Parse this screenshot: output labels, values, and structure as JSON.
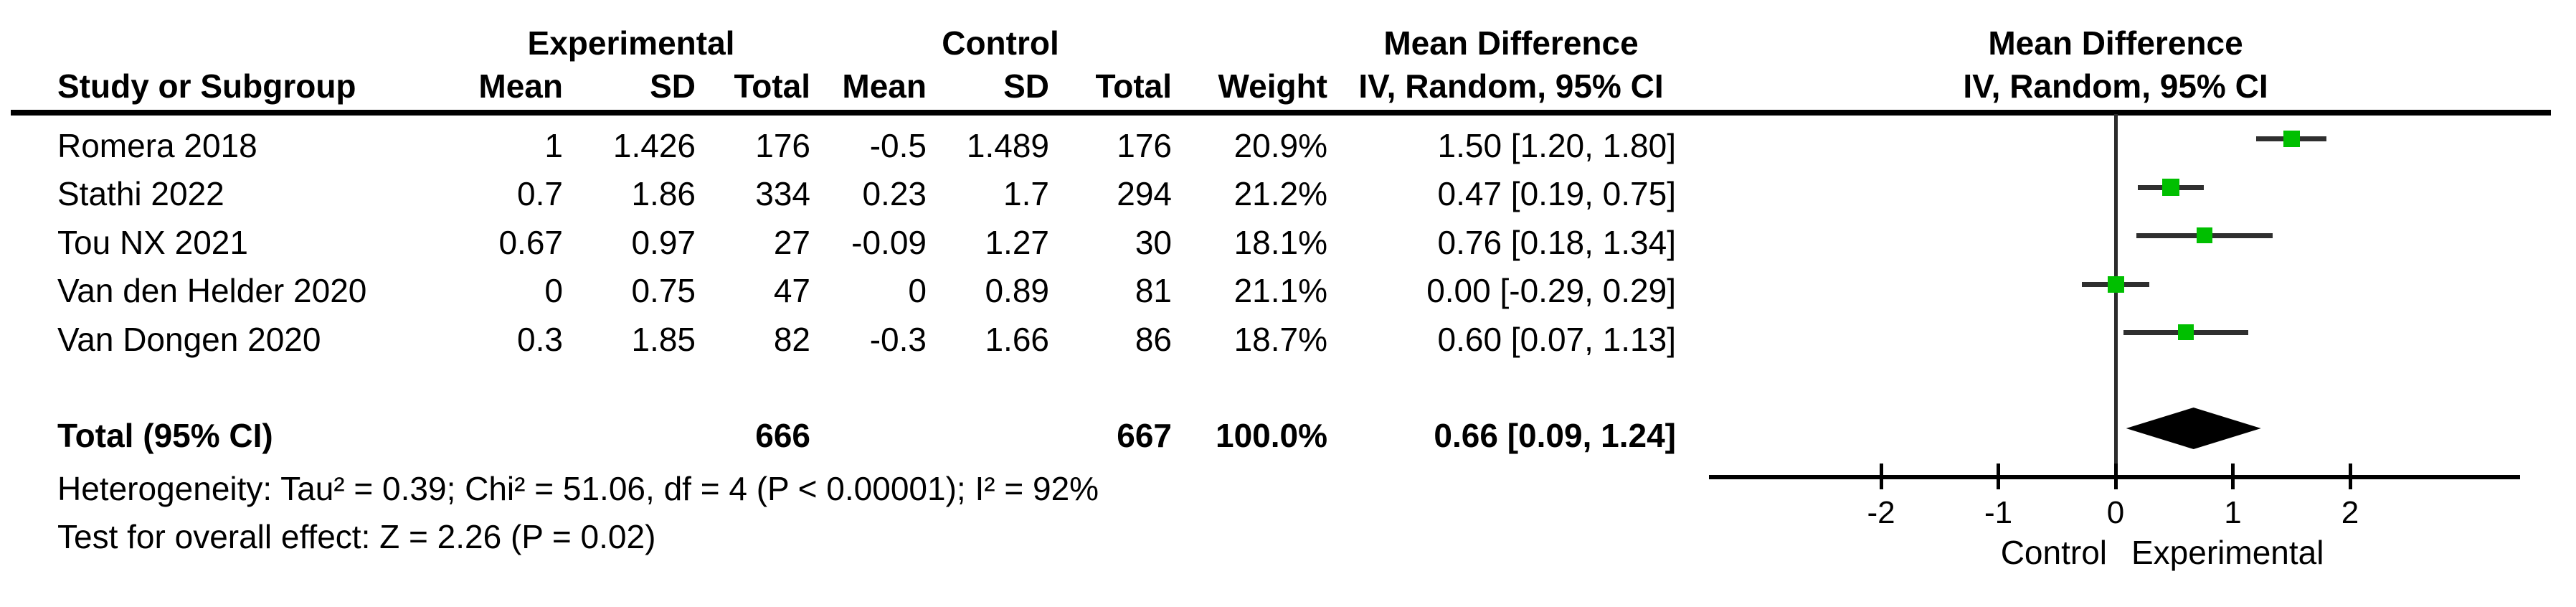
{
  "table": {
    "group_headers": {
      "experimental": "Experimental",
      "control": "Control",
      "mean_difference": "Mean Difference"
    },
    "columns": {
      "study": "Study or Subgroup",
      "mean": "Mean",
      "sd": "SD",
      "total": "Total",
      "weight": "Weight",
      "ci": "IV, Random, 95% CI"
    },
    "rows": [
      {
        "study": "Romera 2018",
        "exp_mean": "1",
        "exp_sd": "1.426",
        "exp_total": "176",
        "ctrl_mean": "-0.5",
        "ctrl_sd": "1.489",
        "ctrl_total": "176",
        "weight": "20.9%",
        "ci": "1.50 [1.20, 1.80]"
      },
      {
        "study": "Stathi 2022",
        "exp_mean": "0.7",
        "exp_sd": "1.86",
        "exp_total": "334",
        "ctrl_mean": "0.23",
        "ctrl_sd": "1.7",
        "ctrl_total": "294",
        "weight": "21.2%",
        "ci": "0.47 [0.19, 0.75]"
      },
      {
        "study": "Tou NX 2021",
        "exp_mean": "0.67",
        "exp_sd": "0.97",
        "exp_total": "27",
        "ctrl_mean": "-0.09",
        "ctrl_sd": "1.27",
        "ctrl_total": "30",
        "weight": "18.1%",
        "ci": "0.76 [0.18, 1.34]"
      },
      {
        "study": "Van den Helder 2020",
        "exp_mean": "0",
        "exp_sd": "0.75",
        "exp_total": "47",
        "ctrl_mean": "0",
        "ctrl_sd": "0.89",
        "ctrl_total": "81",
        "weight": "21.1%",
        "ci": "0.00 [-0.29, 0.29]"
      },
      {
        "study": "Van Dongen 2020",
        "exp_mean": "0.3",
        "exp_sd": "1.85",
        "exp_total": "82",
        "ctrl_mean": "-0.3",
        "ctrl_sd": "1.66",
        "ctrl_total": "86",
        "weight": "18.7%",
        "ci": "0.60 [0.07, 1.13]"
      }
    ],
    "total_row": {
      "label": "Total (95% CI)",
      "exp_total": "666",
      "ctrl_total": "667",
      "weight": "100.0%",
      "ci": "0.66 [0.09, 1.24]"
    },
    "heterogeneity": "Heterogeneity: Tau² = 0.39; Chi² = 51.06, df = 4 (P < 0.00001); I² = 92%",
    "overall_effect": "Test for overall effect: Z = 2.26 (P = 0.02)"
  },
  "plot": {
    "header_line1": "Mean Difference",
    "header_line2": "IV, Random, 95% CI",
    "axis_label_left": "Control",
    "axis_label_right": "Experimental",
    "marker_color": "#00bf00",
    "ci_line_color": "#2f2f2f",
    "diamond_color": "#000000"
  },
  "chart_data": {
    "type": "forest",
    "title": "Mean Difference, IV, Random, 95% CI",
    "x_ticks": [
      -2,
      -1,
      0,
      1,
      2
    ],
    "xlim": [
      -3.5,
      3.45
    ],
    "studies": [
      {
        "name": "Romera 2018",
        "estimate": 1.5,
        "ci_low": 1.2,
        "ci_high": 1.8,
        "weight": 20.9
      },
      {
        "name": "Stathi 2022",
        "estimate": 0.47,
        "ci_low": 0.19,
        "ci_high": 0.75,
        "weight": 21.2
      },
      {
        "name": "Tou NX 2021",
        "estimate": 0.76,
        "ci_low": 0.18,
        "ci_high": 1.34,
        "weight": 18.1
      },
      {
        "name": "Van den Helder 2020",
        "estimate": 0.0,
        "ci_low": -0.29,
        "ci_high": 0.29,
        "weight": 21.1
      },
      {
        "name": "Van Dongen 2020",
        "estimate": 0.6,
        "ci_low": 0.07,
        "ci_high": 1.13,
        "weight": 18.7
      }
    ],
    "total": {
      "name": "Total (95% CI)",
      "estimate": 0.66,
      "ci_low": 0.09,
      "ci_high": 1.24
    },
    "favours_left": "Control",
    "favours_right": "Experimental"
  }
}
